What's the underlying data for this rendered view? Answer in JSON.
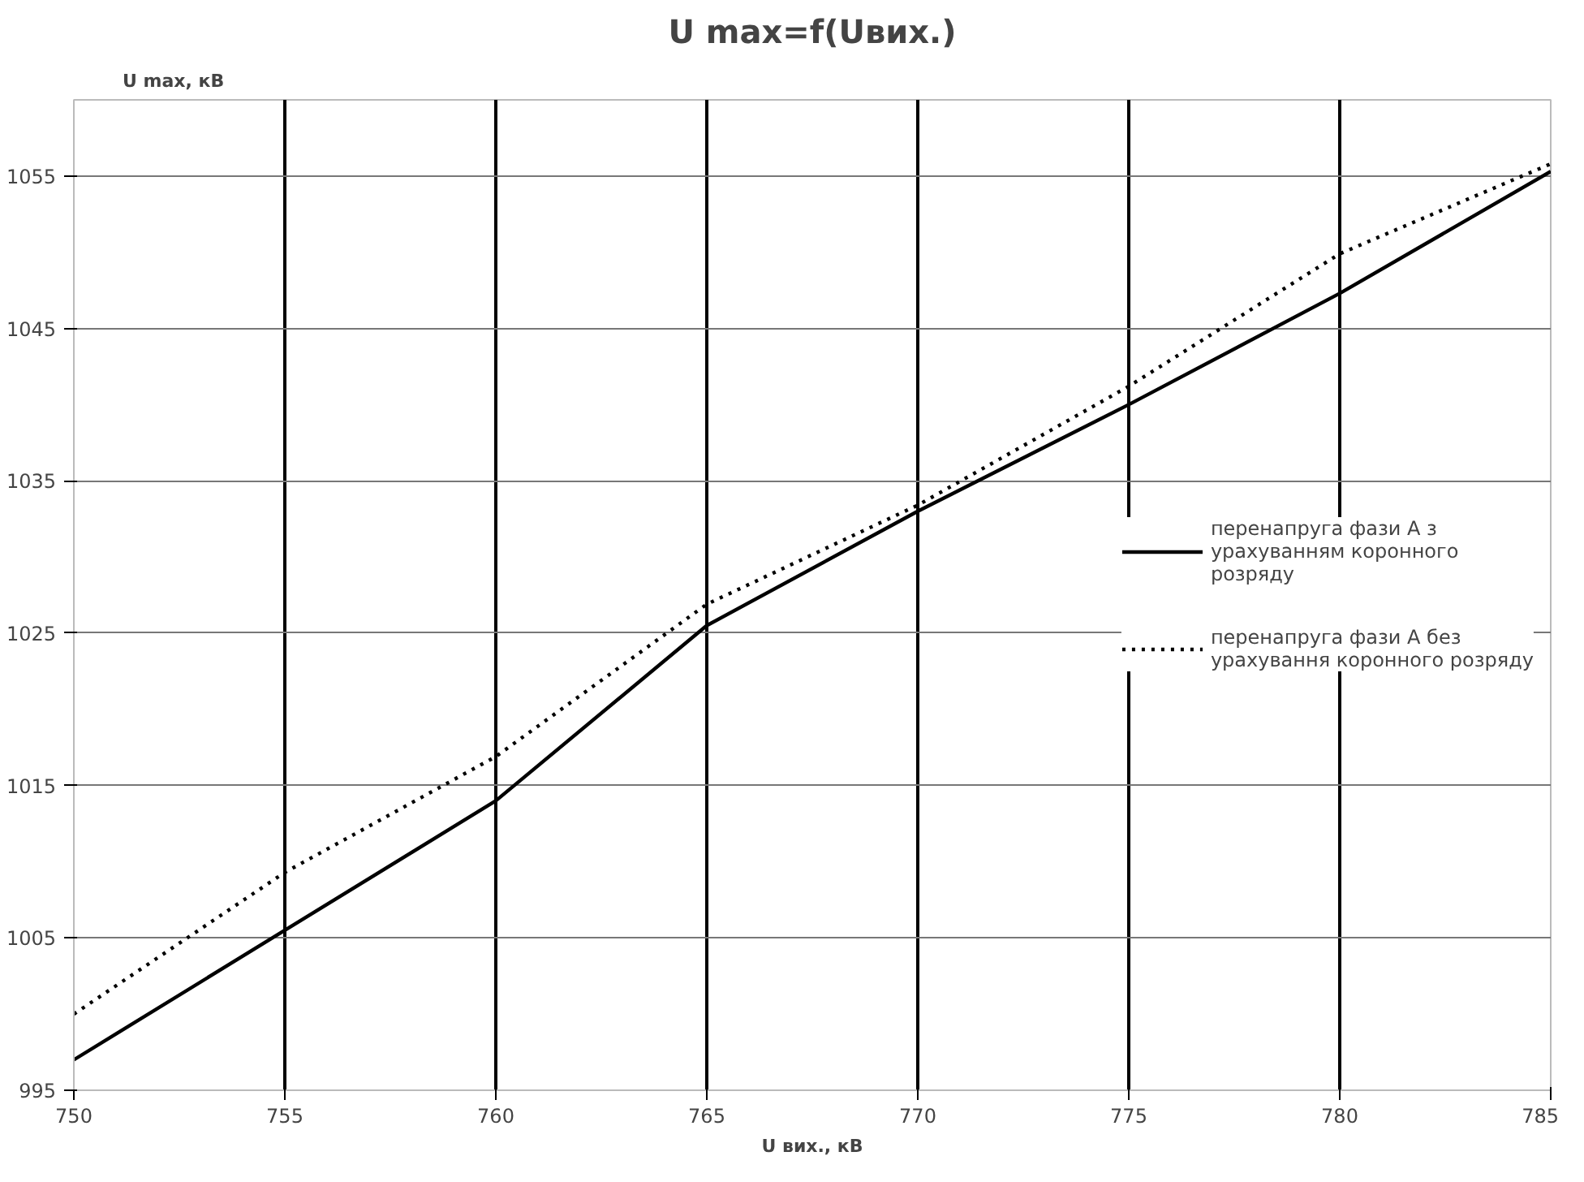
{
  "chart_data": {
    "type": "line",
    "title": "U max=f(Uвих.)",
    "xlabel": "U вих., кВ",
    "ylabel": "U max, кВ",
    "x": [
      750,
      755,
      760,
      765,
      770,
      775,
      780,
      785
    ],
    "series": [
      {
        "name": "перенапруга фази А з урахуванням коронного розряду",
        "color": "#000000",
        "line_style": "solid",
        "values": [
          997,
          1005.5,
          1014,
          1025.5,
          1033,
          1040,
          1047.3,
          1055.3
        ]
      },
      {
        "name": "перенапруга фази А без урахування коронного розряду",
        "color": "#000000",
        "line_style": "dotted",
        "values": [
          1000,
          1009.3,
          1016.9,
          1026.9,
          1033.4,
          1041.2,
          1049.9,
          1055.8
        ]
      }
    ],
    "xlim": [
      750,
      785
    ],
    "ylim": [
      995,
      1060
    ],
    "xticks": [
      750,
      755,
      760,
      765,
      770,
      775,
      780,
      785
    ],
    "yticks": [
      995,
      1005,
      1015,
      1025,
      1035,
      1045,
      1055
    ],
    "grid": true,
    "legend": "right",
    "marker": "none"
  }
}
